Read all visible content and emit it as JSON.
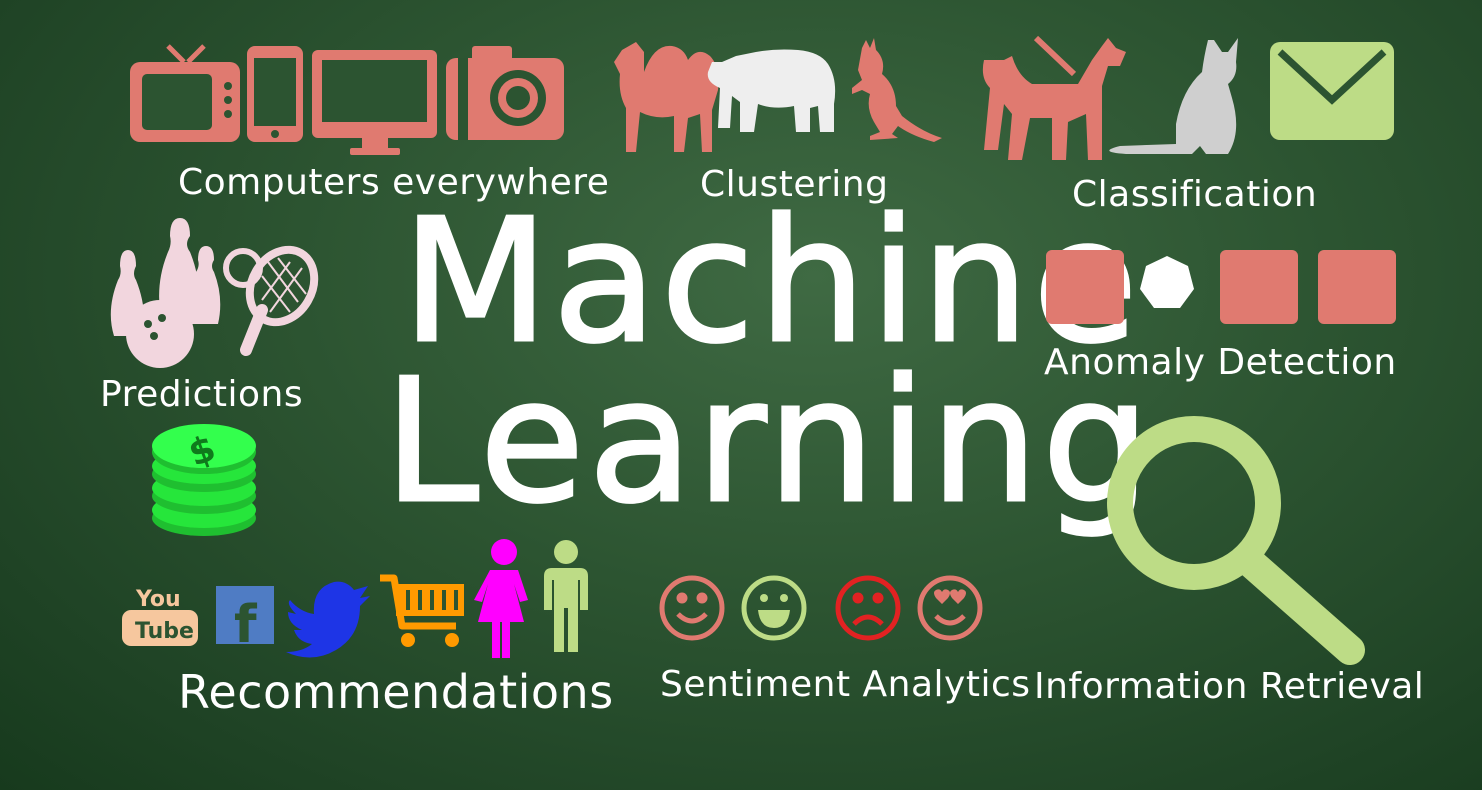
{
  "title": {
    "line1": "Machine",
    "line2": "Learning"
  },
  "labels": {
    "computers": "Computers everywhere",
    "clustering": "Clustering",
    "classification": "Classification",
    "predictions": "Predictions",
    "anomaly": "Anomaly Detection",
    "recommendations": "Recommendations",
    "sentiment": "Sentiment Analytics",
    "retrieval": "Information Retrieval"
  },
  "logos": {
    "youtube_top": "You",
    "youtube_bottom": "Tube",
    "facebook": "f"
  },
  "icons": {
    "computers": [
      "tv-icon",
      "smartphone-icon",
      "monitor-icon",
      "camera-icon"
    ],
    "clustering": [
      "camel-icon",
      "bear-icon",
      "kangaroo-icon"
    ],
    "classification": [
      "dog-icon",
      "cat-icon",
      "envelope-icon"
    ],
    "predictions": [
      "bowling-icon",
      "tennis-racket-icon",
      "coin-stack-icon"
    ],
    "anomaly": [
      "square-icon",
      "heptagon-icon",
      "square-icon",
      "square-icon"
    ],
    "recommendations": [
      "youtube-logo",
      "facebook-logo",
      "twitter-bird-icon",
      "shopping-cart-icon",
      "woman-icon",
      "man-icon"
    ],
    "sentiment": [
      "smile-icon",
      "grin-icon",
      "sad-icon",
      "heart-eyes-icon"
    ],
    "retrieval": [
      "magnifier-icon"
    ]
  },
  "colors": {
    "board": "#2c5431",
    "salmon": "#e07a70",
    "light_green": "#bddc86",
    "grey": "#cfcfcf",
    "pink": "#f2d6de",
    "money_green": "#26e63b",
    "facebook_blue": "#4f7cc4",
    "twitter_blue": "#1e35e6",
    "cart_orange": "#ff9a00",
    "magenta": "#ff00ff",
    "red": "#e22222",
    "youtube_tan": "#f6c79e"
  }
}
